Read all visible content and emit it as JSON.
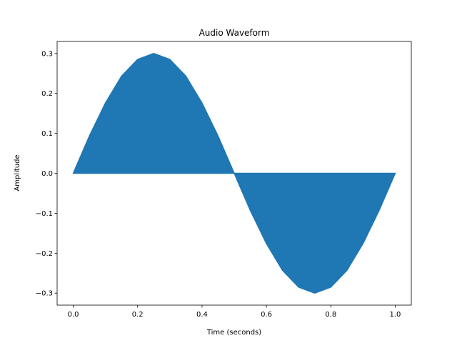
{
  "chart_data": {
    "type": "area",
    "title": "Audio Waveform",
    "xlabel": "Time (seconds)",
    "ylabel": "Amplitude",
    "xlim": [
      -0.05,
      1.05
    ],
    "ylim": [
      -0.33,
      0.33
    ],
    "xticks": [
      0.0,
      0.2,
      0.4,
      0.6,
      0.8,
      1.0
    ],
    "xtick_labels": [
      "0.0",
      "0.2",
      "0.4",
      "0.6",
      "0.8",
      "1.0"
    ],
    "yticks": [
      -0.3,
      -0.2,
      -0.1,
      0.0,
      0.1,
      0.2,
      0.3
    ],
    "ytick_labels": [
      "−0.3",
      "−0.2",
      "−0.1",
      "0.0",
      "0.1",
      "0.2",
      "0.3"
    ],
    "grid": false,
    "series": [
      {
        "color": "#1f77b4",
        "x": [
          0.0,
          0.05,
          0.1,
          0.15,
          0.2,
          0.25,
          0.3,
          0.35,
          0.4,
          0.45,
          0.5,
          0.55,
          0.6,
          0.65,
          0.7,
          0.75,
          0.8,
          0.85,
          0.9,
          0.95,
          1.0
        ],
        "envelope": [
          0.0,
          0.093,
          0.176,
          0.243,
          0.285,
          0.3,
          0.285,
          0.243,
          0.176,
          0.093,
          0.0,
          -0.093,
          -0.176,
          -0.243,
          -0.285,
          -0.3,
          -0.285,
          -0.243,
          -0.176,
          -0.093,
          0.0
        ]
      }
    ]
  }
}
